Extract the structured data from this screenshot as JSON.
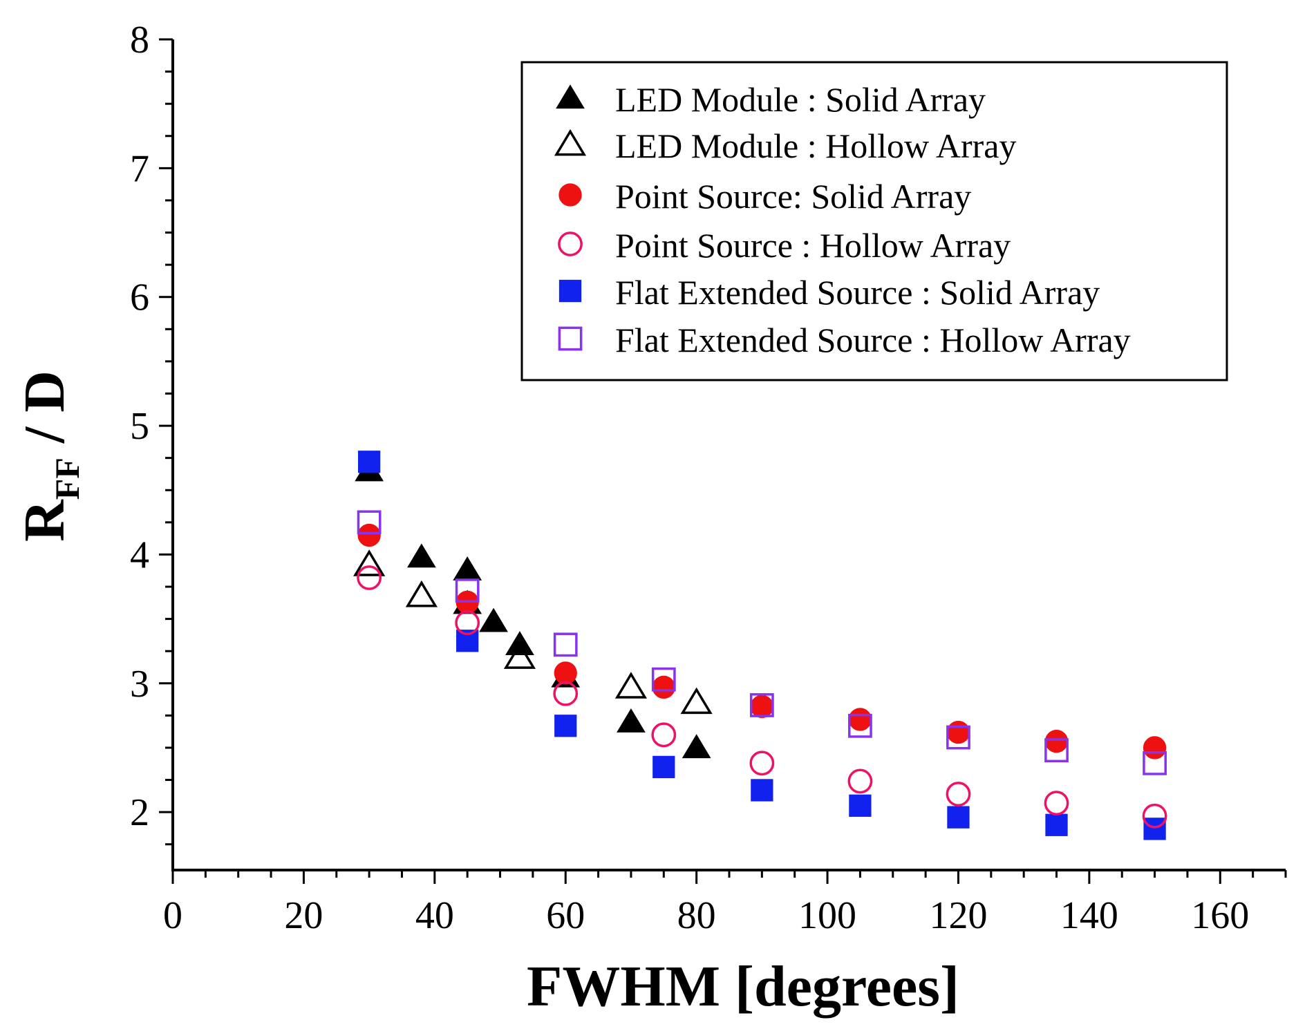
{
  "chart_data": {
    "type": "scatter",
    "xlabel": "FWHM [degrees]",
    "ylabel": {
      "main": "R",
      "subscript": "FF",
      "suffix": " / D"
    },
    "xlim": [
      0,
      170
    ],
    "ylim": [
      1.55,
      8
    ],
    "xticks": [
      0,
      20,
      40,
      60,
      80,
      100,
      120,
      140,
      160
    ],
    "yticks": [
      2,
      3,
      4,
      5,
      6,
      7,
      8
    ],
    "legend_position": "top-right",
    "series": [
      {
        "name": "LED Module : Solid Array",
        "marker": "triangle",
        "filled": true,
        "color": "#000000",
        "points": [
          [
            30,
            4.65
          ],
          [
            38,
            3.98
          ],
          [
            45,
            3.88
          ],
          [
            45,
            3.62
          ],
          [
            49,
            3.48
          ],
          [
            53,
            3.3
          ],
          [
            60,
            3.05
          ],
          [
            70,
            2.7
          ],
          [
            80,
            2.5
          ]
        ]
      },
      {
        "name": "LED Module : Hollow Array",
        "marker": "triangle",
        "filled": false,
        "color": "#000000",
        "points": [
          [
            30,
            3.92
          ],
          [
            38,
            3.68
          ],
          [
            53,
            3.2
          ],
          [
            70,
            2.97
          ],
          [
            80,
            2.85
          ]
        ]
      },
      {
        "name": "Point Source: Solid Array",
        "marker": "circle",
        "filled": true,
        "color": "#ee1111",
        "points": [
          [
            30,
            4.15
          ],
          [
            45,
            3.63
          ],
          [
            60,
            3.08
          ],
          [
            75,
            2.97
          ],
          [
            90,
            2.82
          ],
          [
            105,
            2.72
          ],
          [
            120,
            2.62
          ],
          [
            135,
            2.55
          ],
          [
            150,
            2.5
          ]
        ]
      },
      {
        "name": "Point Source : Hollow Array",
        "marker": "circle",
        "filled": false,
        "color": "#ee1166",
        "points": [
          [
            30,
            3.82
          ],
          [
            45,
            3.47
          ],
          [
            60,
            2.92
          ],
          [
            75,
            2.6
          ],
          [
            90,
            2.38
          ],
          [
            105,
            2.24
          ],
          [
            120,
            2.14
          ],
          [
            135,
            2.07
          ],
          [
            150,
            1.97
          ]
        ]
      },
      {
        "name": "Flat Extended Source : Solid Array",
        "marker": "square",
        "filled": true,
        "color": "#1122ee",
        "points": [
          [
            30,
            4.72
          ],
          [
            45,
            3.33
          ],
          [
            60,
            2.67
          ],
          [
            75,
            2.35
          ],
          [
            90,
            2.17
          ],
          [
            105,
            2.05
          ],
          [
            120,
            1.96
          ],
          [
            135,
            1.9
          ],
          [
            150,
            1.87
          ]
        ]
      },
      {
        "name": "Flat Extended Source : Hollow Array",
        "marker": "square",
        "filled": false,
        "color": "#8833ee",
        "points": [
          [
            30,
            4.25
          ],
          [
            45,
            3.72
          ],
          [
            60,
            3.3
          ],
          [
            75,
            3.03
          ],
          [
            90,
            2.83
          ],
          [
            105,
            2.67
          ],
          [
            120,
            2.58
          ],
          [
            135,
            2.48
          ],
          [
            150,
            2.38
          ]
        ]
      }
    ]
  }
}
